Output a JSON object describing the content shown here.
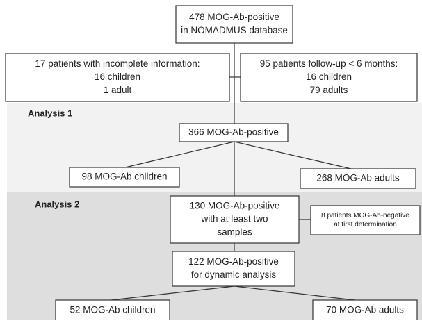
{
  "nodes": [
    {
      "lines": [
        "478 MOG-Ab-positive",
        "in NOMADMUS database"
      ]
    },
    {
      "lines": [
        "17 patients with incomplete information:",
        "16 children",
        "1 adult"
      ]
    },
    {
      "lines": [
        "95 patients follow-up < 6 months:",
        "16 children",
        "79 adults"
      ]
    },
    {
      "lines": [
        "366 MOG-Ab-positive"
      ]
    },
    {
      "lines": [
        "98 MOG-Ab children"
      ]
    },
    {
      "lines": [
        "268 MOG-Ab adults"
      ]
    },
    {
      "lines": [
        "130 MOG-Ab-positive",
        "with at least two",
        "samples"
      ]
    },
    {
      "lines": [
        "8 patients MOG-Ab-negative",
        "at first determination"
      ]
    },
    {
      "lines": [
        "122 MOG-Ab-positive",
        "for dynamic analysis"
      ]
    },
    {
      "lines": [
        "52 MOG-Ab children"
      ]
    },
    {
      "lines": [
        "70 MOG-Ab adults"
      ]
    }
  ],
  "sections": [
    {
      "title": "Analysis 1"
    },
    {
      "title": "Analysis 2"
    }
  ]
}
